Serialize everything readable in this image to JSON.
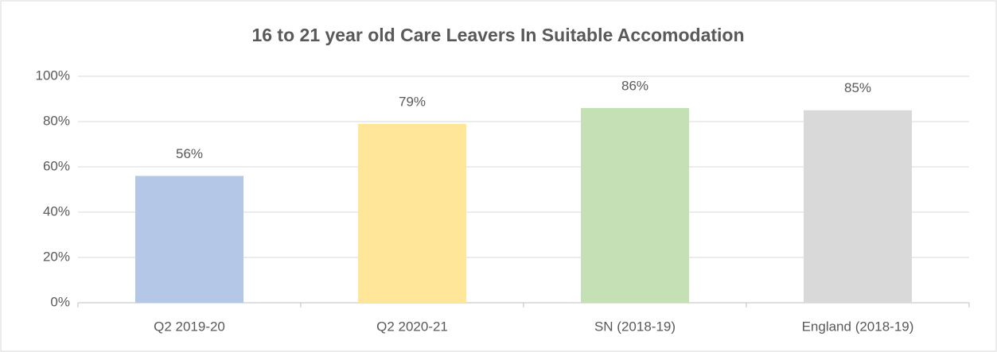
{
  "chart_data": {
    "type": "bar",
    "title": "16 to 21 year old Care Leavers In Suitable Accomodation",
    "categories": [
      "Q2 2019-20",
      "Q2 2020-21",
      "SN (2018-19)",
      "England (2018-19)"
    ],
    "values": [
      56,
      79,
      86,
      85
    ],
    "value_labels": [
      "56%",
      "79%",
      "86%",
      "85%"
    ],
    "colors": [
      "#b4c7e7",
      "#ffe699",
      "#c5e0b4",
      "#d9d9d9"
    ],
    "ylim": [
      0,
      100
    ],
    "yticks": [
      {
        "value": 0,
        "label": "0%"
      },
      {
        "value": 20,
        "label": "20%"
      },
      {
        "value": 40,
        "label": "40%"
      },
      {
        "value": 60,
        "label": "60%"
      },
      {
        "value": 80,
        "label": "80%"
      },
      {
        "value": 100,
        "label": "100%"
      }
    ],
    "grid": true
  }
}
